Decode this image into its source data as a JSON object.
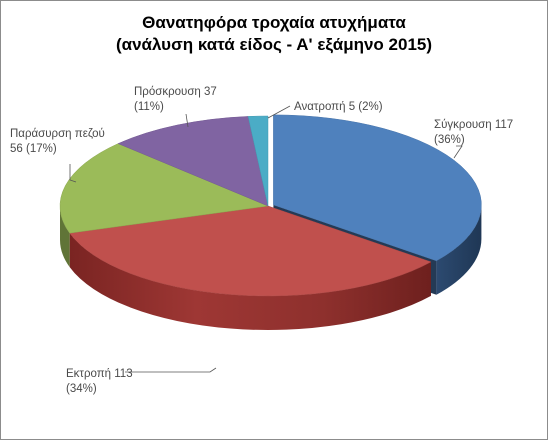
{
  "chart_data": {
    "type": "pie",
    "title_lines": [
      "Θανατηφόρα τροχαία ατυχήματα",
      "(ανάλυση κατά είδος - Α' εξάμηνο 2015)"
    ],
    "unit": "count",
    "slices": [
      {
        "name": "Σύγκρουση",
        "value": 117,
        "pct_label": "(36%)",
        "label_lines": [
          "Σύγκρουση 117",
          "(36%)"
        ],
        "color": "#4f81bd"
      },
      {
        "name": "Εκτροπή",
        "value": 113,
        "pct_label": "(34%)",
        "label_lines": [
          "Εκτροπή  113",
          "(34%)"
        ],
        "color": "#c0504d"
      },
      {
        "name": "Παράσυρση πεζού",
        "value": 56,
        "pct_label": "(17%)",
        "label_lines": [
          "Παράσυρση πεζού",
          "56 (17%)"
        ],
        "color": "#9bbb59"
      },
      {
        "name": "Πρόσκρουση",
        "value": 37,
        "pct_label": "(11%)",
        "label_lines": [
          "Πρόσκρουση  37",
          "(11%)"
        ],
        "color": "#8064a2"
      },
      {
        "name": "Ανατροπή",
        "value": 5,
        "pct_label": "(2%)",
        "label_lines": [
          "Ανατροπή  5 (2%)"
        ],
        "color": "#4bacc6"
      }
    ],
    "legend": "none",
    "style": "3d-exploded-pie"
  }
}
